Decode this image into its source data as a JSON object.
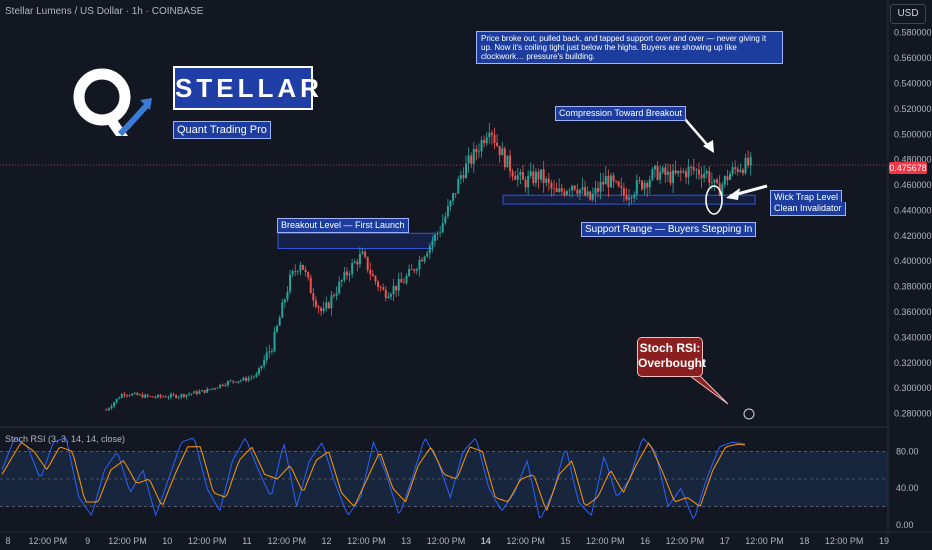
{
  "header": {
    "title": "Stellar Lumens / US Dollar · 1h · COINBASE",
    "currency_button": "USD"
  },
  "logo": {
    "brand": "STELLAR",
    "subtitle": "Quant Trading Pro"
  },
  "annotations": {
    "note": "Price broke out, pulled back, and tapped support over and over — never giving it up. Now it's coiling tight just below the highs. Buyers are showing up like clockwork… pressure's building.",
    "compression": "Compression Toward Breakout",
    "breakout_level": "Breakout Level — First Launch",
    "support_range": "Support Range — Buyers Stepping In",
    "wick_trap": "Wick Trap Level",
    "clean_invalidator": "Clean Invalidator",
    "stoch_bubble_line1": "Stoch RSI:",
    "stoch_bubble_line2": "Overbought"
  },
  "indicator_label": "Stoch RSI (3, 3, 14, 14, close)",
  "last_price": "0.475678",
  "colors": {
    "up": "#26a69a",
    "down": "#ef5350",
    "k_line": "#2962ff",
    "d_line": "#ff9800",
    "band": "#1e3a5f",
    "annotation": "#1c3d9e"
  },
  "chart_data": {
    "type": "candlestick",
    "price_axis": {
      "ticks": [
        "0.580000",
        "0.560000",
        "0.540000",
        "0.520000",
        "0.500000",
        "0.480000",
        "0.460000",
        "0.440000",
        "0.420000",
        "0.400000",
        "0.380000",
        "0.360000",
        "0.340000",
        "0.320000",
        "0.300000",
        "0.280000"
      ],
      "range": [
        0.271,
        0.59
      ]
    },
    "time_axis": [
      "8",
      "12:00 PM",
      "9",
      "12:00 PM",
      "10",
      "12:00 PM",
      "11",
      "12:00 PM",
      "12",
      "12:00 PM",
      "13",
      "12:00 PM",
      "14",
      "12:00 PM",
      "15",
      "12:00 PM",
      "16",
      "12:00 PM",
      "17",
      "12:00 PM",
      "18",
      "12:00 PM",
      "19"
    ],
    "price_path_anchors": [
      [
        0,
        0.283
      ],
      [
        3,
        0.296
      ],
      [
        8,
        0.293
      ],
      [
        13,
        0.294
      ],
      [
        18,
        0.298
      ],
      [
        22,
        0.305
      ],
      [
        25,
        0.307
      ],
      [
        27,
        0.31
      ],
      [
        30,
        0.335
      ],
      [
        33,
        0.385
      ],
      [
        35,
        0.4
      ],
      [
        37,
        0.375
      ],
      [
        39,
        0.358
      ],
      [
        41,
        0.375
      ],
      [
        44,
        0.395
      ],
      [
        46,
        0.405
      ],
      [
        48,
        0.387
      ],
      [
        50,
        0.375
      ],
      [
        53,
        0.382
      ],
      [
        55,
        0.392
      ],
      [
        57,
        0.405
      ],
      [
        60,
        0.425
      ],
      [
        62,
        0.445
      ],
      [
        64,
        0.47
      ],
      [
        66,
        0.482
      ],
      [
        68,
        0.498
      ],
      [
        69,
        0.508
      ],
      [
        70,
        0.495
      ],
      [
        72,
        0.478
      ],
      [
        75,
        0.462
      ],
      [
        78,
        0.468
      ],
      [
        81,
        0.452
      ],
      [
        84,
        0.462
      ],
      [
        87,
        0.448
      ],
      [
        90,
        0.465
      ],
      [
        93,
        0.452
      ],
      [
        96,
        0.46
      ],
      [
        99,
        0.47
      ],
      [
        102,
        0.466
      ],
      [
        105,
        0.472
      ],
      [
        108,
        0.47
      ],
      [
        110,
        0.455
      ],
      [
        112,
        0.468
      ],
      [
        114,
        0.475
      ],
      [
        116,
        0.476
      ]
    ],
    "support_zone": [
      0.445,
      0.452
    ],
    "breakout_zone": [
      0.41,
      0.422
    ],
    "stoch_rsi": {
      "levels": [
        80,
        50,
        20
      ],
      "axis": [
        "80.00",
        "40.00",
        "0.00"
      ],
      "range": [
        0,
        100
      ],
      "k_anchors": [
        [
          0,
          60
        ],
        [
          2,
          95
        ],
        [
          4,
          85
        ],
        [
          6,
          50
        ],
        [
          8,
          90
        ],
        [
          10,
          95
        ],
        [
          12,
          30
        ],
        [
          14,
          10
        ],
        [
          16,
          60
        ],
        [
          18,
          80
        ],
        [
          20,
          35
        ],
        [
          22,
          60
        ],
        [
          24,
          10
        ],
        [
          26,
          50
        ],
        [
          28,
          90
        ],
        [
          30,
          95
        ],
        [
          32,
          40
        ],
        [
          34,
          15
        ],
        [
          36,
          70
        ],
        [
          38,
          95
        ],
        [
          40,
          60
        ],
        [
          42,
          30
        ],
        [
          44,
          90
        ],
        [
          46,
          20
        ],
        [
          48,
          70
        ],
        [
          50,
          90
        ],
        [
          52,
          45
        ],
        [
          54,
          10
        ],
        [
          56,
          30
        ],
        [
          58,
          90
        ],
        [
          60,
          55
        ],
        [
          62,
          10
        ],
        [
          64,
          50
        ],
        [
          66,
          95
        ],
        [
          68,
          70
        ],
        [
          70,
          30
        ],
        [
          72,
          80
        ],
        [
          74,
          95
        ],
        [
          76,
          40
        ],
        [
          78,
          15
        ],
        [
          80,
          35
        ],
        [
          82,
          70
        ],
        [
          84,
          5
        ],
        [
          86,
          35
        ],
        [
          88,
          85
        ],
        [
          90,
          25
        ],
        [
          92,
          10
        ],
        [
          94,
          75
        ],
        [
          96,
          30
        ],
        [
          98,
          50
        ],
        [
          100,
          95
        ],
        [
          102,
          80
        ],
        [
          104,
          20
        ],
        [
          106,
          40
        ],
        [
          108,
          5
        ],
        [
          110,
          50
        ],
        [
          112,
          85
        ],
        [
          114,
          90
        ],
        [
          116,
          88
        ]
      ],
      "d_anchors": [
        [
          0,
          55
        ],
        [
          3,
          90
        ],
        [
          5,
          80
        ],
        [
          7,
          60
        ],
        [
          9,
          85
        ],
        [
          11,
          80
        ],
        [
          13,
          25
        ],
        [
          15,
          25
        ],
        [
          17,
          60
        ],
        [
          19,
          70
        ],
        [
          21,
          45
        ],
        [
          23,
          50
        ],
        [
          25,
          20
        ],
        [
          27,
          55
        ],
        [
          29,
          85
        ],
        [
          31,
          85
        ],
        [
          33,
          35
        ],
        [
          35,
          30
        ],
        [
          37,
          70
        ],
        [
          39,
          85
        ],
        [
          41,
          55
        ],
        [
          43,
          50
        ],
        [
          45,
          65
        ],
        [
          47,
          35
        ],
        [
          49,
          70
        ],
        [
          51,
          80
        ],
        [
          53,
          35
        ],
        [
          55,
          20
        ],
        [
          57,
          50
        ],
        [
          59,
          80
        ],
        [
          61,
          40
        ],
        [
          63,
          25
        ],
        [
          65,
          65
        ],
        [
          67,
          85
        ],
        [
          69,
          55
        ],
        [
          71,
          50
        ],
        [
          73,
          85
        ],
        [
          75,
          80
        ],
        [
          77,
          30
        ],
        [
          79,
          25
        ],
        [
          81,
          50
        ],
        [
          83,
          55
        ],
        [
          85,
          15
        ],
        [
          87,
          55
        ],
        [
          89,
          70
        ],
        [
          91,
          20
        ],
        [
          93,
          30
        ],
        [
          95,
          60
        ],
        [
          97,
          35
        ],
        [
          99,
          65
        ],
        [
          101,
          90
        ],
        [
          103,
          60
        ],
        [
          105,
          25
        ],
        [
          107,
          30
        ],
        [
          109,
          20
        ],
        [
          111,
          60
        ],
        [
          113,
          85
        ],
        [
          115,
          88
        ],
        [
          116,
          87
        ]
      ]
    }
  }
}
